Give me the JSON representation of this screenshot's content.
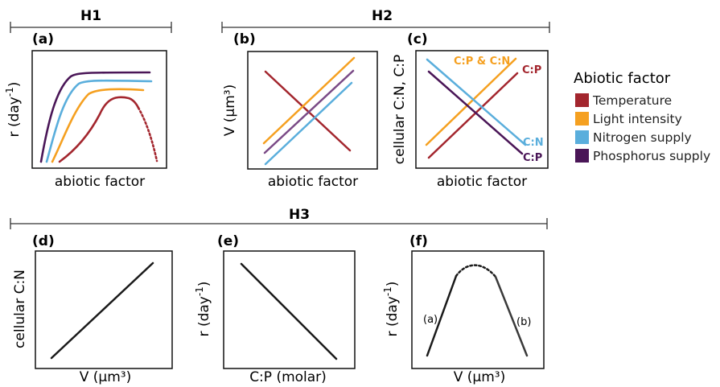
{
  "colors": {
    "temperature": "#A3262E",
    "light": "#F5A020",
    "nitrogen": "#5AAEDC",
    "phosphorus": "#4A1657",
    "phosphorus_mid": "#7A4A86",
    "black": "#111111"
  },
  "headers": {
    "h1": "H1",
    "h2": "H2",
    "h3": "H3"
  },
  "panels": {
    "a": {
      "tag": "(a)",
      "ylabel_base": "r (day",
      "ylabel_sup": "-1",
      "ylabel_end": ")",
      "xlabel": "abiotic factor"
    },
    "b": {
      "tag": "(b)",
      "ylabel": "V (µm³)",
      "xlabel": "abiotic factor"
    },
    "c": {
      "tag": "(c)",
      "ylabel": "cellular C:N, C:P",
      "xlabel": "abiotic factor",
      "label_cpcn": "C:P & C:N",
      "label_cp_top": "C:P",
      "label_cn": "C:N",
      "label_cp_bottom": "C:P"
    },
    "d": {
      "tag": "(d)",
      "ylabel": "cellular C:N",
      "xlabel": "V (µm³)"
    },
    "e": {
      "tag": "(e)",
      "ylabel_base": "r (day",
      "ylabel_sup": "-1",
      "ylabel_end": ")",
      "xlabel": "C:P (molar)"
    },
    "f": {
      "tag": "(f)",
      "ylabel_base": "r (day",
      "ylabel_sup": "-1",
      "ylabel_end": ")",
      "xlabel": "V (µm³)",
      "label_left": "(a)",
      "label_right": "(b)"
    }
  },
  "legend": {
    "title": "Abiotic factor",
    "items": [
      {
        "label": "Temperature",
        "color": "#A3262E"
      },
      {
        "label": "Light intensity",
        "color": "#F5A020"
      },
      {
        "label": "Nitrogen supply",
        "color": "#5AAEDC"
      },
      {
        "label": "Phosphorus supply",
        "color": "#4A1657"
      }
    ]
  }
}
